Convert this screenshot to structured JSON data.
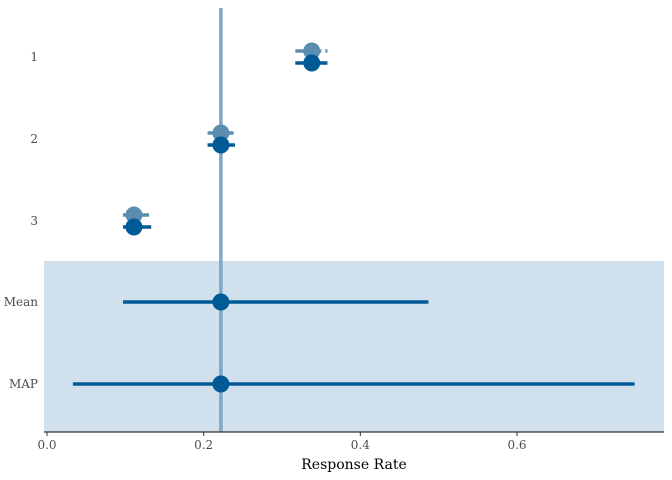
{
  "chart_data": {
    "type": "forest",
    "xlabel": "Response Rate",
    "ylabel": "",
    "title": "",
    "xlim": [
      0,
      0.78
    ],
    "x_ticks": [
      0.0,
      0.2,
      0.4,
      0.6
    ],
    "x_tick_labels": [
      "0.0",
      "0.2",
      "0.4",
      "0.6"
    ],
    "categories": [
      "1",
      "2",
      "3",
      "Mean",
      "MAP"
    ],
    "reference_line": 0.222,
    "shaded_categories": [
      "Mean",
      "MAP"
    ],
    "series": [
      {
        "color": "#5b8db0",
        "linestyle": "dashed",
        "points": [
          {
            "category": "1",
            "x": 0.338,
            "low": 0.317,
            "high": 0.358
          },
          {
            "category": "2",
            "x": 0.222,
            "low": 0.205,
            "high": 0.24
          },
          {
            "category": "3",
            "x": 0.111,
            "low": 0.097,
            "high": 0.133
          }
        ]
      },
      {
        "color": "#005a96",
        "linestyle": "solid",
        "points": [
          {
            "category": "1",
            "x": 0.338,
            "low": 0.317,
            "high": 0.358
          },
          {
            "category": "2",
            "x": 0.222,
            "low": 0.205,
            "high": 0.24
          },
          {
            "category": "3",
            "x": 0.111,
            "low": 0.097,
            "high": 0.133
          },
          {
            "category": "Mean",
            "x": 0.222,
            "low": 0.097,
            "high": 0.487
          },
          {
            "category": "MAP",
            "x": 0.222,
            "low": 0.033,
            "high": 0.75
          }
        ]
      }
    ],
    "colors": {
      "shade": "#d0e0ec",
      "reference": "#7fa7c7",
      "axis": "#333333"
    }
  }
}
